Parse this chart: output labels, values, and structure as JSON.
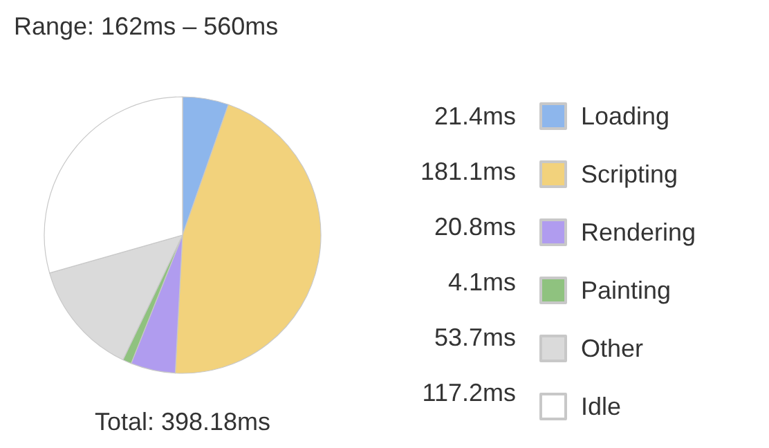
{
  "chart_data": {
    "type": "pie",
    "title": "Range: 162ms – 560ms",
    "annotations": [
      "Total: 398.18ms"
    ],
    "categories": [
      "Loading",
      "Scripting",
      "Rendering",
      "Painting",
      "Other",
      "Idle"
    ],
    "values": [
      21.4,
      181.1,
      20.8,
      4.1,
      53.7,
      117.2
    ],
    "value_labels": [
      "21.4ms",
      "181.1ms",
      "20.8ms",
      "4.1ms",
      "53.7ms",
      "117.2ms"
    ],
    "colors": [
      "#8db6ec",
      "#f2d27c",
      "#b09cef",
      "#8fc27f",
      "#dadada",
      "#ffffff"
    ],
    "legend": "right"
  }
}
